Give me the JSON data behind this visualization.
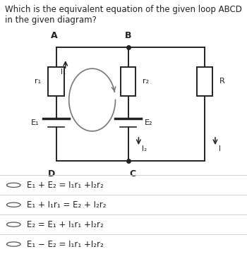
{
  "title": "Which is the equivalent equation of the given loop ABCD in the given diagram?",
  "title_fontsize": 8.5,
  "bg_color": "#daeef7",
  "options": [
    {
      "text": "E₁ + E₂ = I₁r₁ +I₂r₂"
    },
    {
      "text": "E₁ + I₁r₁ = E₂ + I₂r₂"
    },
    {
      "text": "E₂ = E₁ + I₁r₁ +I₂r₂"
    },
    {
      "text": "E₁ − E₂ = I₁r₁ +I₂r₂"
    }
  ]
}
